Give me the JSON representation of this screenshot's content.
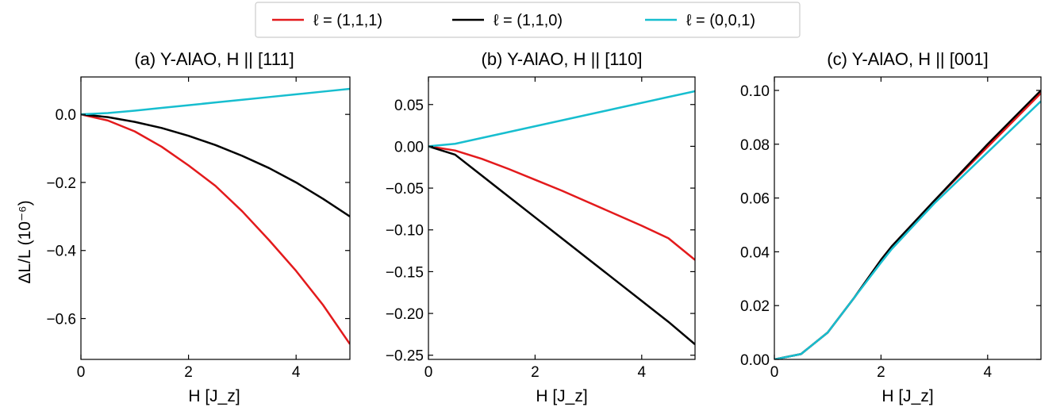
{
  "legend": {
    "items": [
      {
        "label": "ℓ = (1,1,1)",
        "color": "#e31a1c"
      },
      {
        "label": "ℓ = (1,1,0)",
        "color": "#000000"
      },
      {
        "label": "ℓ = (0,0,1)",
        "color": "#17becf"
      }
    ],
    "placement": "top-center"
  },
  "ylabel": "ΔL/L (10⁻⁶)",
  "chart_data": [
    {
      "type": "line",
      "title": "(a) Y-AlAO, H || [111]",
      "xlabel": "H [J_z]",
      "xlim": [
        0,
        5
      ],
      "ylim": [
        -0.72,
        0.11
      ],
      "xticks": [
        0,
        2,
        4
      ],
      "yticks": [
        0.0,
        -0.2,
        -0.4,
        -0.6
      ],
      "ytick_labels": [
        "0.0",
        "−0.2",
        "−0.4",
        "−0.6"
      ],
      "series": [
        {
          "name": "ℓ = (1,1,1)",
          "color": "#e31a1c",
          "x": [
            0,
            0.5,
            1,
            1.5,
            2,
            2.5,
            3,
            3.5,
            4,
            4.5,
            5
          ],
          "y": [
            0,
            -0.018,
            -0.05,
            -0.095,
            -0.15,
            -0.21,
            -0.285,
            -0.37,
            -0.46,
            -0.56,
            -0.675
          ]
        },
        {
          "name": "ℓ = (1,1,0)",
          "color": "#000000",
          "x": [
            0,
            0.5,
            1,
            1.5,
            2,
            2.5,
            3,
            3.5,
            4,
            4.5,
            5
          ],
          "y": [
            0,
            -0.008,
            -0.022,
            -0.04,
            -0.063,
            -0.09,
            -0.122,
            -0.158,
            -0.2,
            -0.248,
            -0.3
          ]
        },
        {
          "name": "ℓ = (0,0,1)",
          "color": "#17becf",
          "x": [
            0,
            0.5,
            1,
            1.5,
            2,
            2.5,
            3,
            3.5,
            4,
            4.5,
            5
          ],
          "y": [
            0,
            0.004,
            0.011,
            0.019,
            0.027,
            0.035,
            0.043,
            0.051,
            0.059,
            0.067,
            0.075
          ]
        }
      ]
    },
    {
      "type": "line",
      "title": "(b) Y-AlAO, H || [110]",
      "xlabel": "H [J_z]",
      "xlim": [
        0,
        5
      ],
      "ylim": [
        -0.255,
        0.083
      ],
      "xticks": [
        0,
        2,
        4
      ],
      "yticks": [
        0.05,
        0.0,
        -0.05,
        -0.1,
        -0.15,
        -0.2,
        -0.25
      ],
      "ytick_labels": [
        "0.05",
        "0.00",
        "−0.05",
        "−0.10",
        "−0.15",
        "−0.20",
        "−0.25"
      ],
      "series": [
        {
          "name": "ℓ = (1,1,1)",
          "color": "#e31a1c",
          "x": [
            0,
            0.5,
            1,
            1.5,
            2,
            2.5,
            3,
            3.5,
            4,
            4.5,
            5
          ],
          "y": [
            0,
            -0.005,
            -0.015,
            -0.027,
            -0.04,
            -0.053,
            -0.067,
            -0.081,
            -0.095,
            -0.11,
            -0.136
          ]
        },
        {
          "name": "ℓ = (1,1,0)",
          "color": "#000000",
          "x": [
            0,
            0.5,
            1,
            1.5,
            2,
            2.5,
            3,
            3.5,
            4,
            4.5,
            5
          ],
          "y": [
            0,
            -0.01,
            -0.035,
            -0.06,
            -0.085,
            -0.11,
            -0.135,
            -0.16,
            -0.185,
            -0.21,
            -0.237
          ]
        },
        {
          "name": "ℓ = (0,0,1)",
          "color": "#17becf",
          "x": [
            0,
            0.5,
            1,
            1.5,
            2,
            2.5,
            3,
            3.5,
            4,
            4.5,
            5
          ],
          "y": [
            0,
            0.003,
            0.01,
            0.017,
            0.024,
            0.031,
            0.038,
            0.045,
            0.052,
            0.059,
            0.066
          ]
        }
      ]
    },
    {
      "type": "line",
      "title": "(c) Y-AlAO, H || [001]",
      "xlabel": "H [J_z]",
      "xlim": [
        0,
        5
      ],
      "ylim": [
        0.0,
        0.105
      ],
      "xticks": [
        0,
        2,
        4
      ],
      "yticks": [
        0.0,
        0.02,
        0.04,
        0.06,
        0.08,
        0.1
      ],
      "ytick_labels": [
        "0.00",
        "0.02",
        "0.04",
        "0.06",
        "0.08",
        "0.10"
      ],
      "series": [
        {
          "name": "ℓ = (1,1,1)",
          "color": "#e31a1c",
          "x": [
            0,
            0.5,
            1,
            1.5,
            2,
            2.2,
            3,
            4,
            5
          ],
          "y": [
            0,
            0.002,
            0.01,
            0.023,
            0.037,
            0.042,
            0.059,
            0.079,
            0.099
          ]
        },
        {
          "name": "ℓ = (1,1,0)",
          "color": "#000000",
          "x": [
            0,
            0.5,
            1,
            1.5,
            2,
            2.2,
            3,
            4,
            5
          ],
          "y": [
            0,
            0.002,
            0.01,
            0.023,
            0.037,
            0.042,
            0.059,
            0.08,
            0.1
          ]
        },
        {
          "name": "ℓ = (0,0,1)",
          "color": "#17becf",
          "x": [
            0,
            0.5,
            1,
            1.5,
            2,
            2.2,
            3,
            4,
            5
          ],
          "y": [
            0,
            0.002,
            0.01,
            0.023,
            0.036,
            0.041,
            0.058,
            0.077,
            0.096
          ]
        }
      ]
    }
  ]
}
